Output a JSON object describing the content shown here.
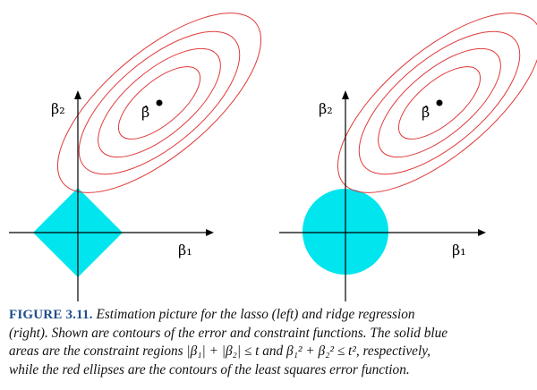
{
  "figure": {
    "panels": [
      {
        "id": "lasso",
        "constraint_shape": "diamond",
        "y_axis_label": "β₂",
        "x_axis_label": "β₁",
        "estimate_label": "β̂"
      },
      {
        "id": "ridge",
        "constraint_shape": "disk",
        "y_axis_label": "β₂",
        "x_axis_label": "β₁",
        "estimate_label": "β̂"
      }
    ],
    "colors": {
      "constraint_fill": "#00e5ee",
      "contour_stroke": "#e03a3a",
      "axis_stroke": "#000000",
      "caption_label": "#1f4e8c"
    }
  },
  "caption": {
    "label": "FIGURE 3.11.",
    "lines": [
      "Estimation picture for the lasso (left) and ridge regression",
      "(right). Shown are contours of the error and constraint functions. The solid blue",
      "areas are the constraint regions |β₁| + |β₂| ≤ t and β₁² + β₂² ≤ t², respectively,",
      "while the red ellipses are the contours of the least squares error function."
    ]
  }
}
